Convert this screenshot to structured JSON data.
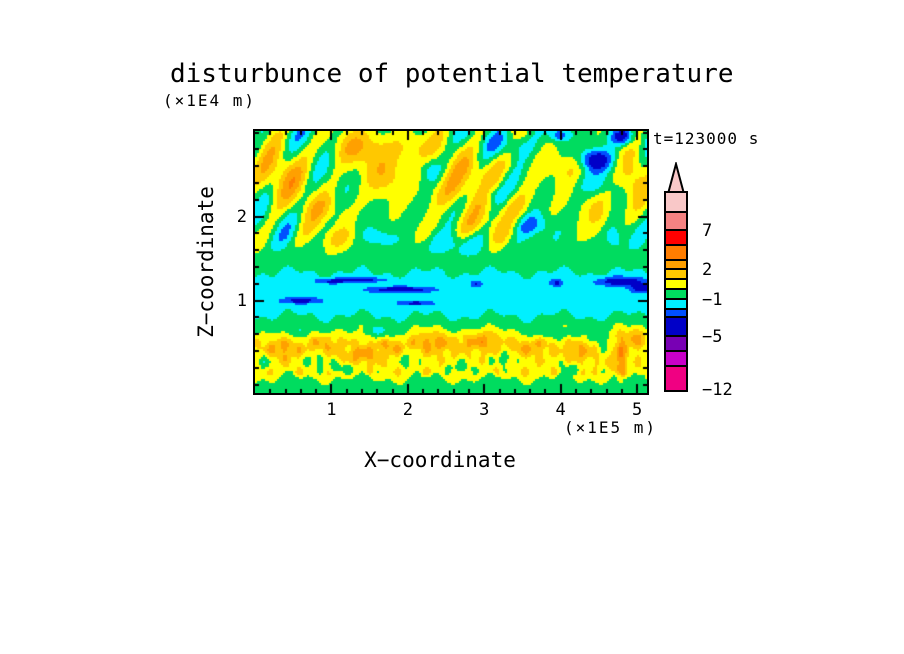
{
  "title": "disturbunce of potential temperature",
  "time_label": "t=123000 s",
  "chart_data": {
    "type": "filled_contour",
    "title": "disturbunce of potential temperature",
    "annotation": "t=123000 s",
    "xlabel": "X−coordinate",
    "x_units": "(×1E5 m)",
    "ylabel": "Z−coordinate",
    "y_units": "(×1E4 m)",
    "xlim": [
      0,
      5.13
    ],
    "ylim": [
      -0.1,
      3.02
    ],
    "x_major_ticks": [
      1,
      2,
      3,
      4,
      5
    ],
    "x_tick_labels": [
      "1",
      "2",
      "3",
      "4",
      "5"
    ],
    "y_major_ticks": [
      1,
      2
    ],
    "y_tick_labels": [
      "1",
      "2"
    ],
    "minor_tick_step": 0.2,
    "levels": [
      -12,
      -9,
      -7,
      -5,
      -3,
      -2,
      -1,
      0,
      1,
      2,
      3,
      5,
      7,
      9,
      12
    ],
    "palette": [
      "#F00082",
      "#C800C8",
      "#7800B4",
      "#0000C8",
      "#0050FF",
      "#00F0FF",
      "#00DC5F",
      "#FFFF00",
      "#FFC800",
      "#FFA000",
      "#FF7D00",
      "#FF0000",
      "#F58282",
      "#F9C8C8"
    ],
    "colorbar": {
      "arrow_color": "#F9C8C8",
      "segments": [
        {
          "color": "#F9C8C8",
          "h": 20
        },
        {
          "color": "#F58282",
          "h": 18,
          "label": "7"
        },
        {
          "color": "#FF0000",
          "h": 15
        },
        {
          "color": "#FF7D00",
          "h": 15
        },
        {
          "color": "#FFA000",
          "h": 9,
          "label": "2"
        },
        {
          "color": "#FFC800",
          "h": 10
        },
        {
          "color": "#FFFF00",
          "h": 10
        },
        {
          "color": "#00DC5F",
          "h": 10,
          "label": "−1"
        },
        {
          "color": "#00F0FF",
          "h": 10
        },
        {
          "color": "#0050FF",
          "h": 8
        },
        {
          "color": "#0000C8",
          "h": 19,
          "label": "−5"
        },
        {
          "color": "#7800B4",
          "h": 15
        },
        {
          "color": "#C800C8",
          "h": 15
        },
        {
          "color": "#F00082",
          "h": 23,
          "label": "−12"
        }
      ]
    },
    "field": {
      "profile": [
        [
          0,
          -0.75
        ],
        [
          0.04,
          -0.55
        ],
        [
          0.11,
          0.7
        ],
        [
          0.52,
          0.7
        ],
        [
          0.62,
          0.15
        ],
        [
          0.7,
          -0.5
        ],
        [
          0.8,
          -0.9
        ],
        [
          0.9,
          -1.45
        ],
        [
          1.25,
          -1.5
        ],
        [
          1.36,
          -0.85
        ],
        [
          1.48,
          -0.5
        ],
        [
          1.65,
          -0.4
        ],
        [
          3.02,
          -0.45
        ]
      ],
      "edge_wiggle": [
        [
          0.05,
          7.2,
          1.1
        ],
        [
          0.035,
          19.0,
          3.0
        ]
      ],
      "waves": {
        "onset_z": 1.42,
        "ramp": 0.4,
        "amp": 1.2,
        "env": [
          0.7,
          0.45,
          2.42,
          0.6
        ],
        "components": [
          [
            1.0,
            12.1,
            -7.4,
            0.8
          ],
          [
            0.5,
            5.5,
            3.9,
            2.1
          ]
        ]
      },
      "bottom_noise": {
        "z_top": 0.62,
        "fade": 0.12,
        "z_bot": 0.05,
        "fade2": 0.08,
        "terms": [
          [
            0.5,
            15.0,
            2.0,
            25.0,
            1.0
          ],
          [
            0.35,
            34.0,
            0.7,
            0,
            0
          ]
        ]
      },
      "blobs": [
        [
          0.3,
          2.47,
          0.3,
          0.22,
          1.9
        ],
        [
          0.95,
          2.1,
          0.22,
          0.14,
          1.5
        ],
        [
          1.35,
          2.83,
          0.26,
          0.15,
          2.2
        ],
        [
          1.7,
          2.5,
          0.2,
          0.18,
          2.0
        ],
        [
          2.1,
          2.81,
          0.24,
          0.14,
          1.7
        ],
        [
          2.5,
          2.3,
          0.26,
          0.16,
          1.6
        ],
        [
          3.0,
          2.57,
          0.28,
          0.16,
          1.8
        ],
        [
          3.4,
          2.13,
          0.22,
          0.14,
          1.5
        ],
        [
          4.15,
          2.57,
          0.2,
          0.16,
          1.7
        ],
        [
          4.5,
          2.07,
          0.16,
          0.2,
          1.6
        ],
        [
          4.95,
          2.45,
          0.12,
          0.25,
          1.8
        ],
        [
          2.8,
          1.9,
          0.3,
          0.12,
          1.3
        ],
        [
          1.15,
          1.75,
          0.25,
          0.1,
          1.2
        ],
        [
          3.35,
          2.85,
          0.16,
          0.1,
          -1.6
        ],
        [
          2.3,
          2.57,
          0.1,
          0.12,
          -1.2
        ],
        [
          1.6,
          1.75,
          0.18,
          0.08,
          -1.3
        ],
        [
          2.55,
          1.67,
          0.22,
          0.09,
          -1.2
        ],
        [
          3.65,
          1.9,
          0.18,
          0.09,
          -1.5
        ],
        [
          4.4,
          2.4,
          0.16,
          0.11,
          -1.7
        ],
        [
          3.1,
          2.25,
          0.12,
          0.09,
          -1.2
        ],
        [
          4.7,
          1.75,
          0.1,
          0.12,
          -1.4
        ],
        [
          4.45,
          2.67,
          0.15,
          0.09,
          -4.0
        ],
        [
          4.8,
          2.95,
          0.1,
          0.07,
          -3.5
        ],
        [
          3.98,
          2.97,
          0.08,
          0.05,
          -2.6
        ],
        [
          0.6,
          1.0,
          0.18,
          0.025,
          -2.2
        ],
        [
          1.0,
          1.23,
          0.14,
          0.02,
          -2.0
        ],
        [
          1.38,
          1.25,
          0.2,
          0.02,
          -2.4
        ],
        [
          1.9,
          1.13,
          0.28,
          0.025,
          -2.6
        ],
        [
          2.1,
          0.97,
          0.16,
          0.02,
          -2.0
        ],
        [
          2.9,
          1.2,
          0.05,
          0.03,
          -1.6
        ],
        [
          3.95,
          1.21,
          0.06,
          0.03,
          -1.8
        ],
        [
          4.78,
          1.23,
          0.2,
          0.035,
          -2.8
        ],
        [
          5.05,
          1.15,
          0.1,
          0.04,
          -2.4
        ],
        [
          0.35,
          0.42,
          0.18,
          0.09,
          1.6
        ],
        [
          0.9,
          0.5,
          0.14,
          0.08,
          1.4
        ],
        [
          1.4,
          0.36,
          0.18,
          0.08,
          1.7
        ],
        [
          1.78,
          0.46,
          0.11,
          0.07,
          1.3
        ],
        [
          2.35,
          0.5,
          0.22,
          0.09,
          1.7
        ],
        [
          2.95,
          0.52,
          0.16,
          0.08,
          1.8
        ],
        [
          3.6,
          0.45,
          0.18,
          0.08,
          1.4
        ],
        [
          4.25,
          0.4,
          0.13,
          0.08,
          1.5
        ],
        [
          4.78,
          0.32,
          0.05,
          0.2,
          2.4
        ],
        [
          4.98,
          0.55,
          0.1,
          0.09,
          1.6
        ],
        [
          0.12,
          0.28,
          0.09,
          0.07,
          -1.3
        ],
        [
          0.55,
          0.62,
          0.13,
          0.06,
          -1.2
        ],
        [
          0.78,
          0.28,
          0.11,
          0.06,
          -1.4
        ],
        [
          1.15,
          0.2,
          0.13,
          0.05,
          -1.3
        ],
        [
          1.62,
          0.62,
          0.18,
          0.05,
          -1.1
        ],
        [
          2.02,
          0.28,
          0.11,
          0.06,
          -1.2
        ],
        [
          2.7,
          0.2,
          0.13,
          0.05,
          -1.3
        ],
        [
          3.28,
          0.3,
          0.11,
          0.06,
          -1.2
        ],
        [
          3.95,
          0.6,
          0.22,
          0.05,
          -1.1
        ],
        [
          4.12,
          0.2,
          0.09,
          0.05,
          -1.2
        ],
        [
          4.55,
          0.52,
          0.09,
          0.06,
          -1.3
        ]
      ]
    }
  }
}
